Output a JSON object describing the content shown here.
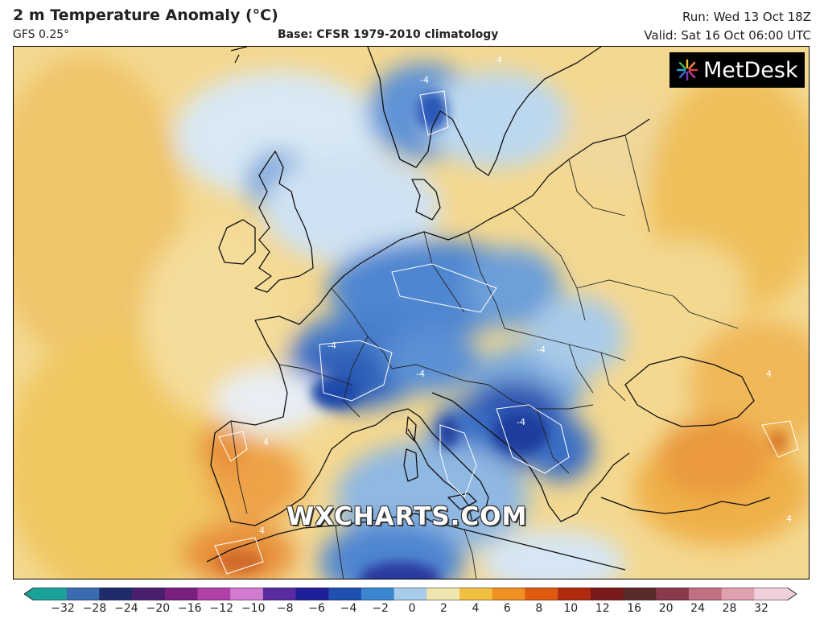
{
  "header": {
    "title": "2 m Temperature Anomaly (°C)",
    "model": "GFS 0.25°",
    "base": "Base: CFSR 1979-2010 climatology",
    "run": "Run: Wed 13 Oct 18Z",
    "valid": "Valid: Sat 16 Oct 06:00 UTC"
  },
  "logo": {
    "text": "MetDesk"
  },
  "watermark": "WXCHARTS.COM",
  "contour_labels": [
    "4",
    "-4",
    "-4",
    "-4",
    "-4",
    "-4",
    "4",
    "4",
    "4",
    "4"
  ],
  "colorbar": {
    "ticks": [
      "−32",
      "−28",
      "−24",
      "−20",
      "−16",
      "−12",
      "−10",
      "−8",
      "−6",
      "−4",
      "−2",
      "0",
      "2",
      "4",
      "6",
      "8",
      "10",
      "12",
      "16",
      "20",
      "24",
      "28",
      "32"
    ],
    "colors": [
      "#1aa39a",
      "#3a6bb0",
      "#1f2a6a",
      "#4a1f70",
      "#7a1f7e",
      "#b040a8",
      "#d07ad0",
      "#5a2aa0",
      "#1f1f9a",
      "#1f4fb0",
      "#3a86d0",
      "#a8cceb",
      "#f0e6b0",
      "#f0c040",
      "#f09020",
      "#e05a10",
      "#b02a10",
      "#7a1a1a",
      "#5a2a2a",
      "#8a3a4a",
      "#c07080",
      "#e0a0b0",
      "#f0d0dc"
    ]
  }
}
